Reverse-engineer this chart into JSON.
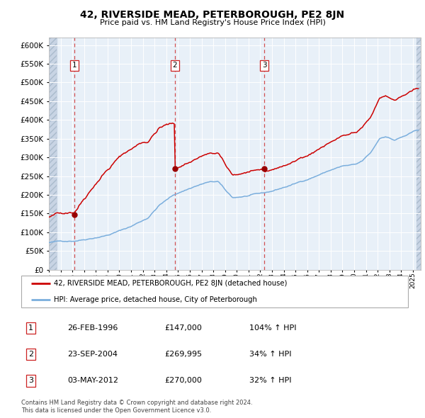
{
  "title": "42, RIVERSIDE MEAD, PETERBOROUGH, PE2 8JN",
  "subtitle": "Price paid vs. HM Land Registry's House Price Index (HPI)",
  "sales": [
    {
      "date": "1996-02-26",
      "price": 147000,
      "label": "1"
    },
    {
      "date": "2004-09-23",
      "price": 269995,
      "label": "2"
    },
    {
      "date": "2012-05-03",
      "price": 270000,
      "label": "3"
    }
  ],
  "legend_entries": [
    "42, RIVERSIDE MEAD, PETERBOROUGH, PE2 8JN (detached house)",
    "HPI: Average price, detached house, City of Peterborough"
  ],
  "table_rows": [
    {
      "num": "1",
      "date": "26-FEB-1996",
      "price": "£147,000",
      "change": "104% ↑ HPI"
    },
    {
      "num": "2",
      "date": "23-SEP-2004",
      "price": "£269,995",
      "change": "34% ↑ HPI"
    },
    {
      "num": "3",
      "date": "03-MAY-2012",
      "price": "£270,000",
      "change": "32% ↑ HPI"
    }
  ],
  "footer1": "Contains HM Land Registry data © Crown copyright and database right 2024.",
  "footer2": "This data is licensed under the Open Government Licence v3.0.",
  "ylim": [
    0,
    620000
  ],
  "yticks": [
    0,
    50000,
    100000,
    150000,
    200000,
    250000,
    300000,
    350000,
    400000,
    450000,
    500000,
    550000,
    600000
  ],
  "plot_bg": "#e8f0f8",
  "red_line_color": "#cc0000",
  "blue_line_color": "#7aaedd",
  "vline_color": "#cc3333",
  "marker_color": "#990000",
  "box_color": "#cc2222"
}
